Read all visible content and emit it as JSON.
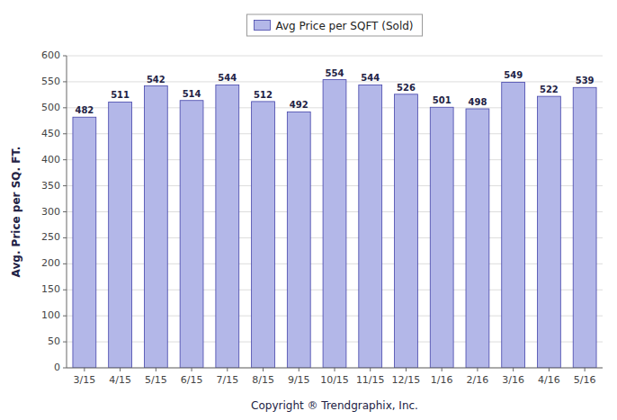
{
  "chart_data": {
    "type": "bar",
    "x_label": "Copyright ® Trendgraphix, Inc.",
    "y_label": "Avg. Price per SQ. FT.",
    "categories": [
      "3/15",
      "4/15",
      "5/15",
      "6/15",
      "7/15",
      "8/15",
      "9/15",
      "10/15",
      "11/15",
      "12/15",
      "1/16",
      "2/16",
      "3/16",
      "4/16",
      "5/16"
    ],
    "series": [
      {
        "name": "Avg Price per SQFT (Sold)",
        "color": "#b3b7e8",
        "values": [
          482,
          511,
          542,
          514,
          544,
          512,
          492,
          554,
          544,
          526,
          501,
          498,
          549,
          522,
          539
        ]
      }
    ],
    "ylim": [
      0,
      600
    ],
    "yticks": [
      0,
      50,
      100,
      150,
      200,
      250,
      300,
      350,
      400,
      450,
      500,
      550,
      600
    ],
    "grid": true,
    "legend": "top",
    "data_labels": true
  }
}
